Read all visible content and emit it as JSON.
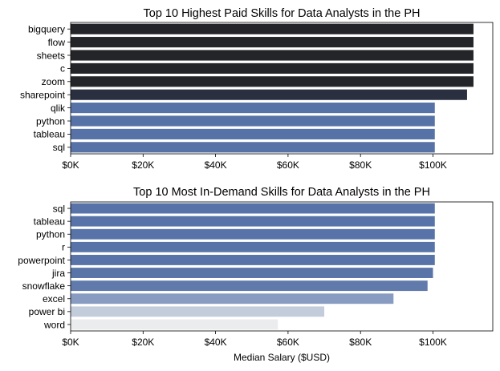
{
  "chart_data": [
    {
      "type": "bar",
      "orientation": "horizontal",
      "title": "Top 10 Highest Paid Skills for Data Analysts in the PH",
      "xlabel": "",
      "ylabel": "",
      "xlim": [
        0,
        116500
      ],
      "xticks": [
        0,
        20000,
        40000,
        60000,
        80000,
        100000
      ],
      "xtick_labels": [
        "$0K",
        "$20K",
        "$40K",
        "$60K",
        "$80K",
        "$100K"
      ],
      "grid": false,
      "categories": [
        "bigquery",
        "flow",
        "sheets",
        "c",
        "zoom",
        "sharepoint",
        "qlik",
        "python",
        "tableau",
        "sql"
      ],
      "values": [
        111175,
        111175,
        111175,
        111175,
        111175,
        109400,
        100500,
        100500,
        100500,
        100500
      ],
      "colors": [
        "#232528",
        "#232528",
        "#232528",
        "#232528",
        "#232528",
        "#2a3040",
        "#5672a6",
        "#5672a6",
        "#5672a6",
        "#5672a6"
      ]
    },
    {
      "type": "bar",
      "orientation": "horizontal",
      "title": "Top 10 Most In-Demand Skills for Data Analysts in the PH",
      "xlabel": "Median Salary ($USD)",
      "ylabel": "",
      "xlim": [
        0,
        116500
      ],
      "xticks": [
        0,
        20000,
        40000,
        60000,
        80000,
        100000
      ],
      "xtick_labels": [
        "$0K",
        "$20K",
        "$40K",
        "$60K",
        "$80K",
        "$100K"
      ],
      "grid": false,
      "categories": [
        "sql",
        "tableau",
        "python",
        "r",
        "powerpoint",
        "jira",
        "snowflake",
        "excel",
        "power bi",
        "word"
      ],
      "values": [
        100500,
        100500,
        100500,
        100500,
        100500,
        100000,
        98500,
        89100,
        70000,
        57200
      ],
      "colors": [
        "#5773a7",
        "#5773a7",
        "#5773a7",
        "#5773a7",
        "#5773a7",
        "#5975a8",
        "#5f7aab",
        "#889cc2",
        "#c3ccdb",
        "#ebecee"
      ]
    }
  ]
}
